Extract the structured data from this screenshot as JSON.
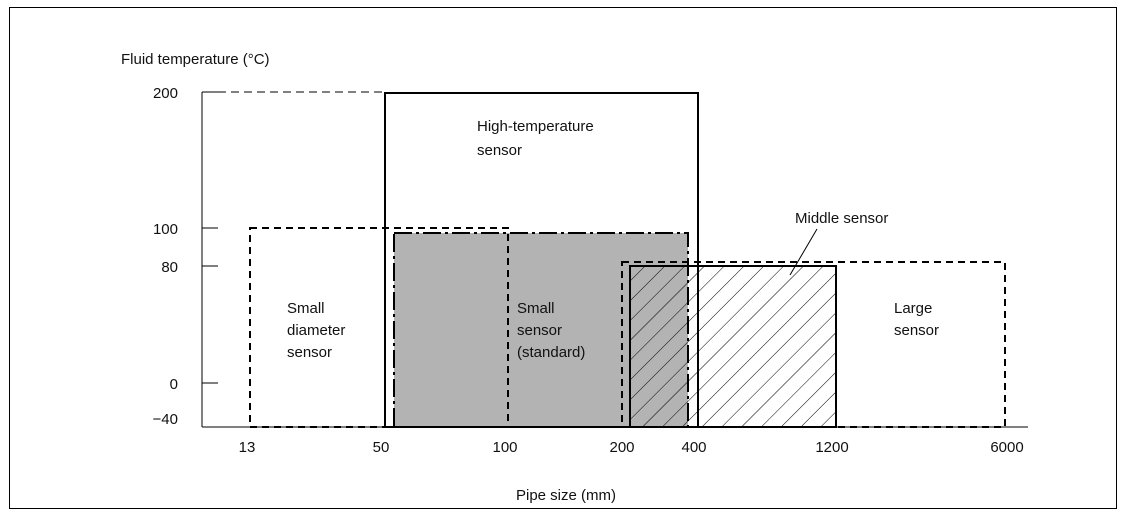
{
  "y_axis_title": "Fluid temperature (°C)",
  "x_axis_title": "Pipe size (mm)",
  "y_ticks": [
    "200",
    "100",
    "80",
    "0",
    "−40"
  ],
  "x_ticks": [
    "13",
    "50",
    "100",
    "200",
    "400",
    "1200",
    "6000"
  ],
  "regions": {
    "high_temp": {
      "line1": "High-temperature",
      "line2": "sensor"
    },
    "small_diameter": {
      "line1": "Small",
      "line2": "diameter",
      "line3": "sensor"
    },
    "small_standard": {
      "line1": "Small",
      "line2": "sensor",
      "line3": "(standard)"
    },
    "middle": {
      "label": "Middle sensor"
    },
    "large": {
      "line1": "Large",
      "line2": "sensor"
    }
  },
  "colors": {
    "small_standard_fill": "#b3b3b3",
    "line": "#000000"
  }
}
